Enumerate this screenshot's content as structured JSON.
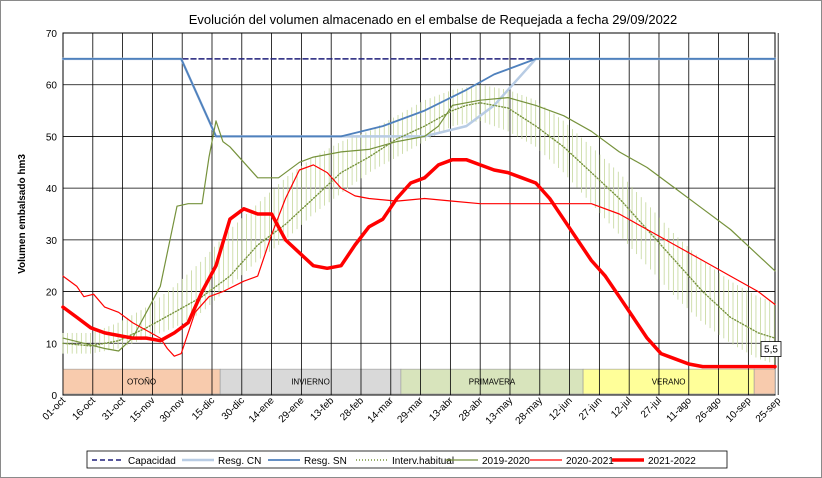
{
  "chart_data": {
    "type": "line",
    "title": "Evolución del volumen almacenado en el embalse de Requejada a fecha 29/09/2022",
    "ylabel": "Volumen embalsado hm3",
    "xlabel": "",
    "ylim": [
      0,
      70
    ],
    "y_ticks": [
      "0",
      "10",
      "20",
      "30",
      "40",
      "50",
      "60",
      "70"
    ],
    "x_ticks": [
      "01-oct",
      "16-oct",
      "31-oct",
      "15-nov",
      "30-nov",
      "15-dic",
      "30-dic",
      "14-ene",
      "29-ene",
      "13-feb",
      "28-feb",
      "14-mar",
      "29-mar",
      "13-abr",
      "28-abr",
      "13-may",
      "28-may",
      "12-jun",
      "27-jun",
      "12-jul",
      "27-jul",
      "11-ago",
      "26-ago",
      "10-sep",
      "25-sep"
    ],
    "grid": true,
    "legend_placement": "bottom",
    "seasons": [
      {
        "label": "OTOÑO",
        "start_week": 0,
        "end_week": 11.3,
        "color": "#f8cbad"
      },
      {
        "label": "INVIERNO",
        "start_week": 11.3,
        "end_week": 24.3,
        "color": "#d9d9d9"
      },
      {
        "label": "PRIMAVERA",
        "start_week": 24.3,
        "end_week": 37.4,
        "color": "#d8e4bc"
      },
      {
        "label": "VERANO",
        "start_week": 37.4,
        "end_week": 49.7,
        "color": "#ffff99"
      },
      {
        "label": "",
        "start_week": 49.7,
        "end_week": 51.2,
        "color": "#f8cbad"
      }
    ],
    "annotation": {
      "label": "5,5",
      "week": 51.2,
      "value": 5.5
    },
    "interv_band": {
      "name": "Interv.habitual",
      "x": [
        0,
        2,
        4,
        6,
        8,
        10,
        12,
        14,
        16,
        18,
        20,
        22,
        24,
        26,
        28,
        30,
        32,
        34,
        36,
        38,
        40,
        42,
        44,
        46,
        48,
        50,
        51.2
      ],
      "low": [
        8,
        8,
        9,
        11,
        13,
        16,
        21,
        26,
        30,
        35,
        39,
        43,
        46,
        49,
        52,
        53,
        51,
        48,
        43,
        37,
        31,
        25,
        19,
        14,
        10,
        7,
        6
      ],
      "high": [
        12,
        12,
        14,
        17,
        21,
        26,
        32,
        37,
        42,
        46,
        49,
        51,
        54,
        57,
        59,
        60,
        59,
        57,
        53,
        48,
        43,
        37,
        31,
        26,
        22,
        19,
        18
      ],
      "color": "#c4d79b"
    },
    "series": [
      {
        "name": "Capacidad",
        "color": "#1f1f7a",
        "width": 1.5,
        "dash": "5,3",
        "x": [
          0,
          51.2
        ],
        "y": [
          65,
          65
        ]
      },
      {
        "name": "Resg. CN",
        "color": "#b8cce4",
        "width": 2.5,
        "dash": "",
        "x": [
          0,
          8.5,
          11,
          20,
          26,
          29,
          30,
          31,
          32,
          33,
          34,
          51.2
        ],
        "y": [
          65,
          65,
          50,
          50,
          50,
          52,
          54,
          56,
          59,
          62,
          65,
          65
        ]
      },
      {
        "name": "Resg. SN",
        "color": "#4f81bd",
        "width": 1.8,
        "dash": "",
        "x": [
          0,
          8.5,
          11,
          20,
          23,
          26,
          29,
          31,
          34,
          51.2
        ],
        "y": [
          65,
          65,
          50,
          50,
          52,
          55,
          59,
          62,
          65,
          65
        ]
      },
      {
        "name": "Interv.habitual",
        "color": "#77933c",
        "width": 1.4,
        "dash": "1,2",
        "x": [
          0,
          2,
          4,
          6,
          8,
          10,
          12,
          14,
          16,
          18,
          20,
          22,
          24,
          26,
          28,
          29,
          30,
          32,
          34,
          36,
          38,
          40,
          42,
          44,
          46,
          48,
          50,
          51.2
        ],
        "y": [
          10,
          9.5,
          10.5,
          13,
          16,
          19,
          23,
          29,
          33,
          38,
          43,
          46,
          49.5,
          52,
          55,
          56,
          56.5,
          55.5,
          52,
          48,
          43,
          38,
          32,
          26,
          20,
          15,
          12,
          11
        ]
      },
      {
        "name": "2019-2020",
        "color": "#76923c",
        "width": 1.2,
        "dash": "",
        "x": [
          0,
          1.5,
          3,
          4,
          5,
          6,
          7,
          8.2,
          9,
          10,
          10.5,
          11,
          11.5,
          12,
          13,
          14,
          15.5,
          17,
          18,
          20,
          22,
          24,
          26,
          27,
          28,
          30,
          32,
          34,
          36,
          38,
          40,
          42,
          44,
          46,
          48,
          50,
          51.2
        ],
        "y": [
          11,
          10,
          9,
          8.5,
          11,
          16,
          21,
          36.5,
          37,
          37,
          46,
          53,
          49,
          48,
          45,
          42,
          42,
          45,
          46,
          47,
          47.5,
          49,
          50,
          52,
          56,
          57,
          57.5,
          56,
          54,
          51,
          47,
          44,
          40,
          36,
          32,
          27,
          24
        ]
      },
      {
        "name": "2020-2021",
        "color": "#ff0000",
        "width": 1.2,
        "dash": "",
        "x": [
          0,
          1,
          1.5,
          2.2,
          3,
          4,
          5,
          6,
          7,
          7.5,
          8,
          8.5,
          9.5,
          10.5,
          11.5,
          13,
          14,
          15,
          16,
          17,
          18,
          19,
          20,
          21,
          22,
          24,
          26,
          28,
          30,
          32,
          34,
          36,
          38,
          40,
          42,
          44,
          46,
          48,
          50,
          51.2
        ],
        "y": [
          23,
          21,
          19,
          19.5,
          17,
          16,
          14,
          12.5,
          11,
          9,
          7.5,
          8,
          16,
          19,
          20,
          22,
          23,
          31,
          38,
          43.5,
          44.5,
          43,
          40,
          38.5,
          38,
          37.5,
          38,
          37.5,
          37,
          37,
          37,
          37,
          37,
          35,
          32,
          29,
          26,
          23,
          20,
          17.5
        ]
      },
      {
        "name": "2021-2022",
        "color": "#ff0000",
        "width": 3.5,
        "dash": "",
        "x": [
          0,
          1,
          2,
          3,
          4,
          5,
          6,
          7,
          8,
          9,
          10,
          11,
          12,
          13,
          14,
          15,
          16,
          17,
          18,
          19,
          20,
          21,
          22,
          23,
          24,
          25,
          26,
          27,
          28,
          29,
          30,
          31,
          32,
          33,
          34,
          35,
          36,
          37,
          38,
          39,
          40,
          41,
          42,
          43,
          44,
          45,
          46,
          47,
          48,
          49,
          50,
          51.2
        ],
        "y": [
          17,
          15,
          13,
          12,
          11.5,
          11,
          11,
          10.5,
          12,
          14,
          20,
          25,
          34,
          36,
          35,
          35,
          30,
          27.5,
          25,
          24.5,
          25,
          29,
          32.5,
          34,
          38,
          41,
          42,
          44.5,
          45.5,
          45.5,
          44.5,
          43.5,
          43,
          42,
          41,
          38,
          34,
          30,
          26,
          23,
          19,
          15,
          11,
          8,
          7,
          6,
          5.5,
          5.5,
          5.5,
          5.5,
          5.5,
          5.5
        ]
      }
    ]
  },
  "legend": [
    {
      "label": "Capacidad",
      "key": "Capacidad",
      "style": "dash"
    },
    {
      "label": "Resg. CN",
      "key": "Resg. CN",
      "style": "solid"
    },
    {
      "label": "Resg. SN",
      "key": "Resg. SN",
      "style": "solid"
    },
    {
      "label": "Interv.habitual",
      "key": "Interv.habitual",
      "style": "dots"
    },
    {
      "label": "2019-2020",
      "key": "2019-2020",
      "style": "solid"
    },
    {
      "label": "2020-2021",
      "key": "2020-2021",
      "style": "solid"
    },
    {
      "label": "2021-2022",
      "key": "2021-2022",
      "style": "thick"
    }
  ]
}
